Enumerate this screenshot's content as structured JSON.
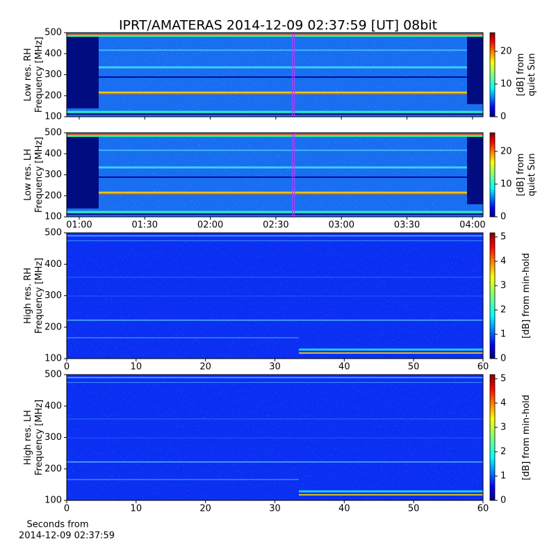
{
  "chart_data": [
    {
      "type": "heatmap",
      "title": "IPRT/AMATERAS 2014-12-09 02:37:59 [UT]   08bit",
      "ylabel": [
        "Low res. RH",
        "Frequency [MHz]"
      ],
      "ylim": [
        100,
        500
      ],
      "yticks": [
        100,
        200,
        300,
        400,
        500
      ],
      "xlim": [
        54.3,
        244.8
      ],
      "xticks": [
        60,
        90,
        120,
        150,
        180,
        210,
        240
      ],
      "marker_x": 158,
      "marker_color": "#b040ff",
      "colorbar": {
        "label": [
          "[dB] from",
          "quiet Sun"
        ],
        "lim": [
          0,
          25.7
        ],
        "ticks": [
          0,
          10,
          20
        ]
      }
    },
    {
      "type": "heatmap",
      "ylabel": [
        "Low res. LH",
        "Frequency [MHz]"
      ],
      "ylim": [
        100,
        500
      ],
      "yticks": [
        100,
        200,
        300,
        400,
        500
      ],
      "xlim": [
        54.3,
        244.8
      ],
      "xticks": [
        {
          "value": 60,
          "label": "01:00"
        },
        {
          "value": 90,
          "label": "01:30"
        },
        {
          "value": 120,
          "label": "02:00"
        },
        {
          "value": 150,
          "label": "02:30"
        },
        {
          "value": 180,
          "label": "03:00"
        },
        {
          "value": 210,
          "label": "03:30"
        },
        {
          "value": 240,
          "label": "04:00"
        }
      ],
      "marker_x": 158,
      "marker_color": "#b040ff",
      "colorbar": {
        "label": [
          "[dB] from",
          "quiet Sun"
        ],
        "lim": [
          0,
          25.7
        ],
        "ticks": [
          0,
          10,
          20
        ]
      }
    },
    {
      "type": "heatmap",
      "ylabel": [
        "High res. RH",
        "Frequency [MHz]"
      ],
      "ylim": [
        100,
        500
      ],
      "yticks": [
        100,
        200,
        300,
        400,
        500
      ],
      "xlim": [
        0,
        60
      ],
      "xticks": [
        0,
        10,
        20,
        30,
        40,
        50,
        60
      ],
      "colorbar": {
        "label": [
          "[dB] from min-hold"
        ],
        "lim": [
          0,
          5.17
        ],
        "ticks": [
          0,
          1,
          2,
          3,
          4,
          5
        ]
      }
    },
    {
      "type": "heatmap",
      "ylabel": [
        "High res. LH",
        "Frequency [MHz]"
      ],
      "ylim": [
        100,
        500
      ],
      "yticks": [
        100,
        200,
        300,
        400,
        500
      ],
      "xlim": [
        0,
        60
      ],
      "xticks": [
        0,
        10,
        20,
        30,
        40,
        50,
        60
      ],
      "xlabel": [
        "Seconds from",
        "2014-12-09 02:37:59"
      ],
      "colorbar": {
        "label": [
          "[dB] from min-hold"
        ],
        "lim": [
          0,
          5.17
        ],
        "ticks": [
          0,
          1,
          2,
          3,
          4,
          5
        ]
      }
    }
  ]
}
